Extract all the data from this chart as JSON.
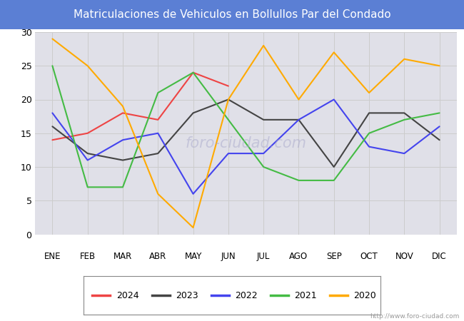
{
  "title": "Matriculaciones de Vehiculos en Bollullos Par del Condado",
  "title_color": "white",
  "title_bg_color": "#5B7FD4",
  "months": [
    "ENE",
    "FEB",
    "MAR",
    "ABR",
    "MAY",
    "JUN",
    "JUL",
    "AGO",
    "SEP",
    "OCT",
    "NOV",
    "DIC"
  ],
  "series_2024": [
    14,
    15,
    18,
    17,
    24,
    22
  ],
  "series_2023": [
    16,
    12,
    11,
    12,
    18,
    20,
    17,
    17,
    10,
    18,
    18,
    14
  ],
  "series_2022": [
    18,
    11,
    14,
    15,
    6,
    12,
    12,
    17,
    20,
    13,
    12,
    16
  ],
  "series_2021": [
    25,
    7,
    7,
    21,
    24,
    17,
    10,
    8,
    8,
    15,
    17,
    18
  ],
  "series_2020": [
    29,
    25,
    19,
    6,
    1,
    20,
    28,
    20,
    27,
    21,
    26,
    25
  ],
  "color_2024": "#EE4444",
  "color_2023": "#444444",
  "color_2022": "#4444EE",
  "color_2021": "#44BB44",
  "color_2020": "#FFAA00",
  "ylim": [
    0,
    30
  ],
  "yticks": [
    0,
    5,
    10,
    15,
    20,
    25,
    30
  ],
  "grid_color": "#CCCCCC",
  "plot_bg_color": "#E0E0E8",
  "fig_bg_color": "#FFFFFF",
  "watermark_text": "http://www.foro-ciudad.com",
  "foro_watermark": "FORO-CIUDAD.COM",
  "legend_years": [
    "2024",
    "2023",
    "2022",
    "2021",
    "2020"
  ]
}
